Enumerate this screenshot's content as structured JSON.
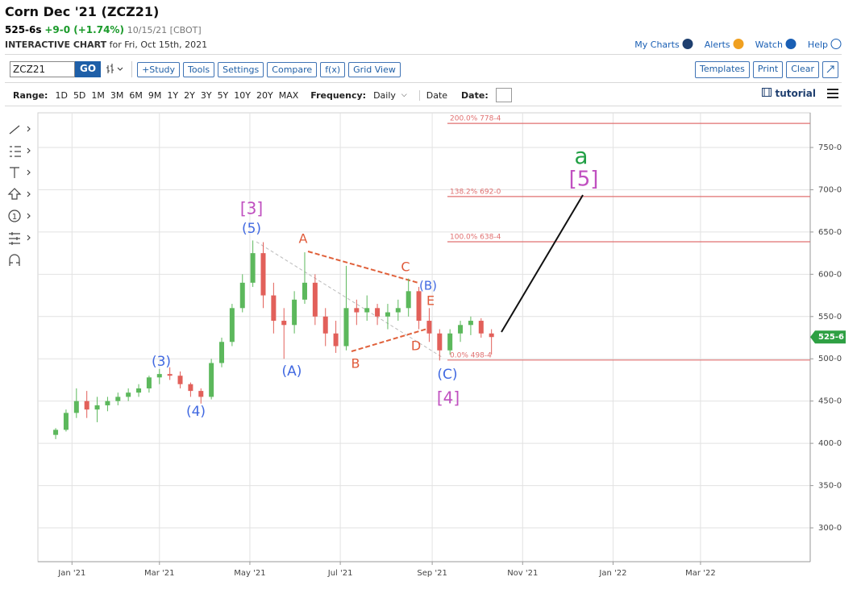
{
  "header": {
    "title": "Corn Dec '21 (ZCZ21)",
    "last": "525-6s",
    "change": "+9-0 (+1.74%)",
    "date": "10/15/21 [CBOT]",
    "chart_label": "INTERACTIVE CHART",
    "chart_date": "for Fri, Oct 15th, 2021",
    "links": [
      "My Charts",
      "Alerts",
      "Watch",
      "Help"
    ]
  },
  "toolbar": {
    "symbol": "ZCZ21",
    "go": "GO",
    "buttons": [
      "+Study",
      "Tools",
      "Settings",
      "Compare",
      "f(x)",
      "Grid View"
    ],
    "right_buttons": [
      "Templates",
      "Print",
      "Clear"
    ]
  },
  "range_bar": {
    "range_label": "Range:",
    "ranges": [
      "1D",
      "5D",
      "1M",
      "3M",
      "6M",
      "9M",
      "1Y",
      "2Y",
      "3Y",
      "5Y",
      "10Y",
      "20Y",
      "MAX"
    ],
    "frequency_label": "Frequency:",
    "frequency": "Daily",
    "date_mode": "Date",
    "date_label": "Date:",
    "tutorial": "tutorial"
  },
  "sidebar": {
    "circle_tool": "1"
  },
  "chart_data": {
    "type": "candlestick",
    "x": [
      -11,
      -4,
      3,
      10,
      17,
      24,
      31,
      38,
      45,
      52,
      59,
      66,
      73,
      80,
      87,
      94,
      101,
      108,
      115,
      122,
      129,
      136,
      143,
      150,
      157,
      164,
      171,
      178,
      185,
      192,
      199,
      206,
      213,
      220,
      227,
      234,
      241,
      248,
      255,
      262,
      269,
      276,
      283
    ],
    "open": [
      410,
      416,
      436,
      450,
      440,
      445,
      450,
      455,
      460,
      465,
      478,
      482,
      480,
      470,
      462,
      455,
      495,
      520,
      560,
      590,
      625,
      575,
      545,
      540,
      570,
      590,
      550,
      530,
      515,
      560,
      555,
      560,
      550,
      555,
      560,
      580,
      545,
      530,
      510,
      530,
      540,
      545,
      530
    ],
    "high": [
      418,
      440,
      465,
      462,
      455,
      455,
      460,
      465,
      470,
      480,
      488,
      490,
      485,
      472,
      465,
      500,
      525,
      565,
      600,
      640,
      638,
      590,
      560,
      580,
      626,
      600,
      560,
      545,
      610,
      570,
      575,
      565,
      565,
      570,
      595,
      585,
      560,
      535,
      535,
      545,
      550,
      548,
      535
    ],
    "low": [
      405,
      414,
      430,
      430,
      425,
      438,
      445,
      450,
      455,
      460,
      470,
      475,
      465,
      455,
      447,
      452,
      490,
      515,
      555,
      585,
      560,
      530,
      500,
      530,
      565,
      540,
      515,
      507,
      510,
      540,
      545,
      540,
      535,
      545,
      550,
      535,
      520,
      498,
      505,
      520,
      528,
      525,
      505
    ],
    "close": [
      416,
      436,
      450,
      440,
      445,
      450,
      455,
      460,
      465,
      478,
      482,
      480,
      470,
      462,
      455,
      495,
      520,
      560,
      590,
      625,
      575,
      545,
      540,
      570,
      590,
      550,
      530,
      515,
      560,
      555,
      560,
      550,
      555,
      560,
      580,
      545,
      530,
      510,
      530,
      540,
      545,
      530,
      525.75
    ],
    "up_color": "#5cb85c",
    "down_color": "#e2605a",
    "xlim": [
      -23,
      498
    ],
    "ylim": [
      260,
      791
    ],
    "xticks": [
      {
        "value": 0,
        "label": "Jan '21"
      },
      {
        "value": 59,
        "label": "Mar '21"
      },
      {
        "value": 120,
        "label": "May '21"
      },
      {
        "value": 181,
        "label": "Jul '21"
      },
      {
        "value": 243,
        "label": "Sep '21"
      },
      {
        "value": 304,
        "label": "Nov '21"
      },
      {
        "value": 365,
        "label": "Jan '22"
      },
      {
        "value": 424,
        "label": "Mar '22"
      }
    ],
    "yticks": [
      {
        "value": 300,
        "label": "300-0"
      },
      {
        "value": 350,
        "label": "350-0"
      },
      {
        "value": 400,
        "label": "400-0"
      },
      {
        "value": 450,
        "label": "450-0"
      },
      {
        "value": 500,
        "label": "500-0"
      },
      {
        "value": 550,
        "label": "550-0"
      },
      {
        "value": 600,
        "label": "600-0"
      },
      {
        "value": 650,
        "label": "650-0"
      },
      {
        "value": 700,
        "label": "700-0"
      },
      {
        "value": 750,
        "label": "750-0"
      }
    ],
    "grid": true,
    "levels": [
      {
        "value": 778.5,
        "label": "200.0% 778-4"
      },
      {
        "value": 692,
        "label": "138.2% 692-0"
      },
      {
        "value": 638.5,
        "label": "100.0% 638-4"
      },
      {
        "value": 498.5,
        "label": "0.0% 498-4"
      }
    ],
    "level_color": "#e07070",
    "last_price": {
      "value": 525.75,
      "label": "525-6"
    },
    "annotations": [
      "[3]",
      "(5)",
      "A",
      "C",
      "(B)",
      "E",
      "D",
      "B",
      "(A)",
      "(3)",
      "(4)",
      "(C)",
      "[4]",
      "a",
      "[5]"
    ]
  }
}
